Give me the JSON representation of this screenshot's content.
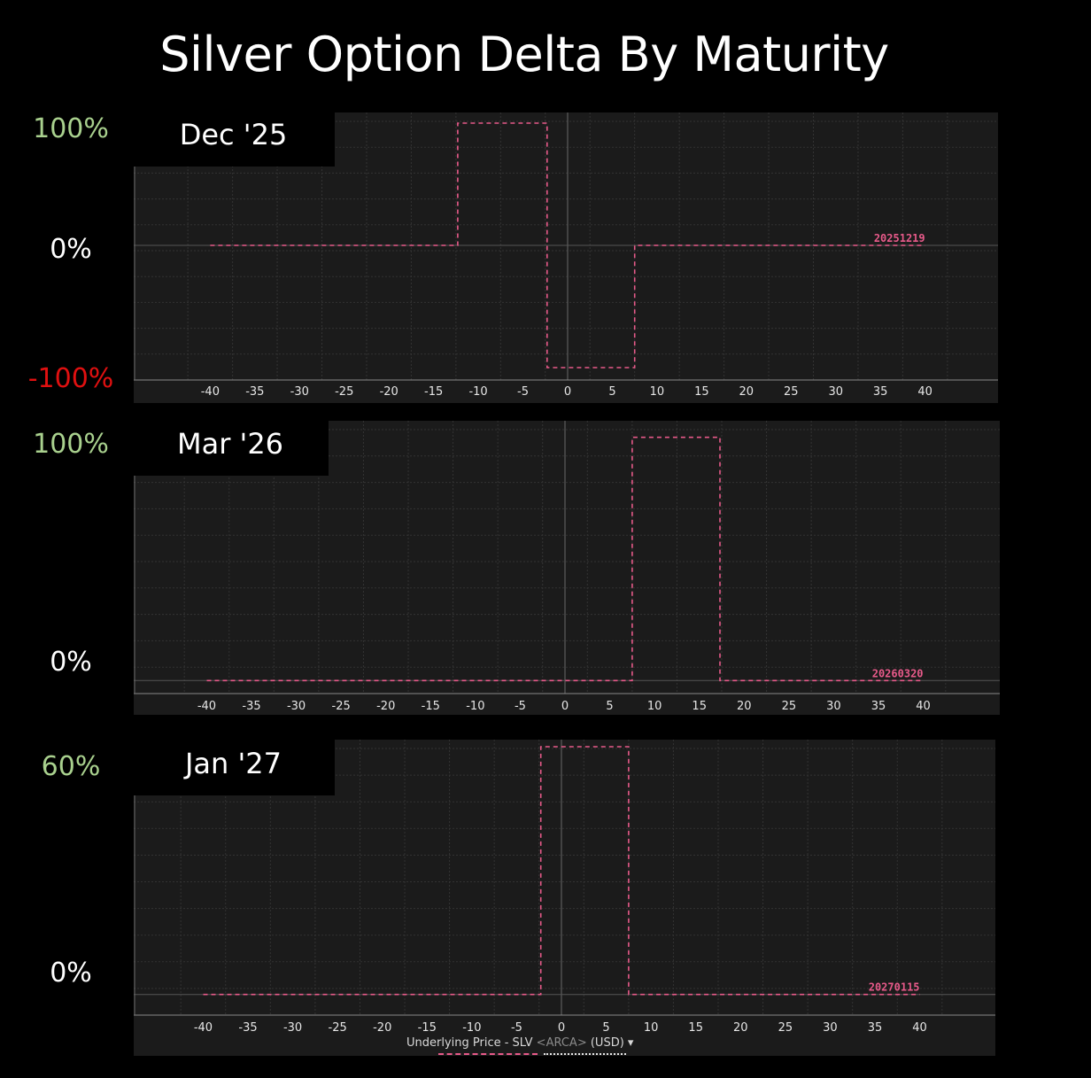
{
  "title": "Silver Option Delta By Maturity",
  "chart_data": [
    {
      "type": "line",
      "maturity_label": "Dec '25",
      "series_label": "20251219",
      "y_labels": {
        "top": "100%",
        "zero": "0%",
        "bottom": "-100%"
      },
      "ylim": [
        -100,
        100
      ],
      "xlim": [
        -44,
        44
      ],
      "x_ticks": [
        -40,
        -35,
        -30,
        -25,
        -20,
        -15,
        -10,
        -5,
        0,
        5,
        10,
        15,
        20,
        25,
        30,
        35,
        40
      ],
      "points": [
        [
          -40,
          0
        ],
        [
          -12.3,
          0
        ],
        [
          -12.3,
          100
        ],
        [
          -2.3,
          100
        ],
        [
          -2.3,
          -100
        ],
        [
          7.5,
          -100
        ],
        [
          7.5,
          0
        ],
        [
          40,
          0
        ]
      ],
      "line_color": "#e85a8a",
      "grid": true
    },
    {
      "type": "line",
      "maturity_label": "Mar '26",
      "series_label": "20260320",
      "y_labels": {
        "top": "100%",
        "zero": "0%"
      },
      "ylim": [
        -5,
        105
      ],
      "xlim": [
        -44,
        44
      ],
      "x_ticks": [
        -40,
        -35,
        -30,
        -25,
        -20,
        -15,
        -10,
        -5,
        0,
        5,
        10,
        15,
        20,
        25,
        30,
        35,
        40
      ],
      "points": [
        [
          -40,
          0
        ],
        [
          7.5,
          0
        ],
        [
          7.5,
          100
        ],
        [
          17.3,
          100
        ],
        [
          17.3,
          0
        ],
        [
          40,
          0
        ]
      ],
      "line_color": "#e85a8a",
      "grid": true
    },
    {
      "type": "line",
      "maturity_label": "Jan '27",
      "series_label": "20270115",
      "y_labels": {
        "top": "60%",
        "zero": "0%"
      },
      "ylim": [
        -5,
        60
      ],
      "xlim": [
        -44,
        44
      ],
      "x_ticks": [
        -40,
        -35,
        -30,
        -25,
        -20,
        -15,
        -10,
        -5,
        0,
        5,
        10,
        15,
        20,
        25,
        30,
        35,
        40
      ],
      "points": [
        [
          -40,
          0
        ],
        [
          -2.3,
          0
        ],
        [
          -2.3,
          60
        ],
        [
          7.5,
          60
        ],
        [
          7.5,
          0
        ],
        [
          40,
          0
        ]
      ],
      "line_color": "#e85a8a",
      "grid": true,
      "xlabel": "Underlying Price - SLV",
      "xlabel_exchange": "<ARCA>",
      "xlabel_currency": "(USD)"
    }
  ]
}
